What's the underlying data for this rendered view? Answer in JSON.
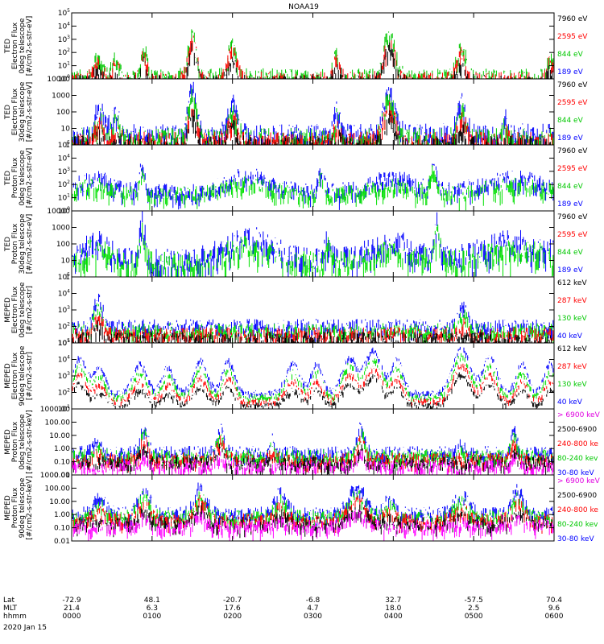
{
  "chart_data": {
    "type": "line",
    "title": "NOAA19",
    "date_label": "2020 Jan 15",
    "row_labels": [
      "Lat",
      "MLT",
      "hhmm"
    ],
    "time_ticks": [
      {
        "hhmm": "0000",
        "lat": "-72.9",
        "mlt": "21.4"
      },
      {
        "hhmm": "0100",
        "lat": "48.1",
        "mlt": "6.3"
      },
      {
        "hhmm": "0200",
        "lat": "-20.7",
        "mlt": "17.6"
      },
      {
        "hhmm": "0300",
        "lat": "-6.8",
        "mlt": "4.7"
      },
      {
        "hhmm": "0400",
        "lat": "32.7",
        "mlt": "18.0"
      },
      {
        "hhmm": "0500",
        "lat": "-57.5",
        "mlt": "2.5"
      },
      {
        "hhmm": "0600",
        "lat": "70.4",
        "mlt": "9.6"
      }
    ],
    "x_range_hours": [
      0,
      6
    ],
    "panels": [
      {
        "id": "ted-e-0",
        "ylabel": [
          "TED",
          "Electron Flux",
          "0deg telescope",
          "[#/cm2-s-str-eV]"
        ],
        "yticks": [
          "10^0",
          "10^1",
          "10^2",
          "10^3",
          "10^4",
          "10^5"
        ],
        "ylog_range": [
          0,
          5
        ],
        "legend": [
          {
            "text": "7960 eV",
            "color": "#000000"
          },
          {
            "text": "2595 eV",
            "color": "#ff0000"
          },
          {
            "text": "844 eV",
            "color": "#00c800"
          },
          {
            "text": "189 eV",
            "color": "#0000ff"
          }
        ],
        "series_colors": [
          "#00c800",
          "#ff0000",
          "#000000"
        ],
        "base_log": 0.3,
        "noise": 0.5,
        "bursts": [
          [
            0.33,
            0.08,
            1.5
          ],
          [
            0.55,
            0.06,
            1.4
          ],
          [
            0.9,
            0.05,
            2.2
          ],
          [
            1.5,
            0.07,
            3.6
          ],
          [
            2.0,
            0.08,
            2.5
          ],
          [
            3.3,
            0.06,
            1.8
          ],
          [
            3.95,
            0.1,
            3.2
          ],
          [
            4.85,
            0.08,
            2.2
          ],
          [
            5.95,
            0.05,
            1.6
          ]
        ]
      },
      {
        "id": "ted-e-30",
        "ylabel": [
          "TED",
          "Electron Flux",
          "30deg telescope",
          "[#/cm2-s-str-eV]"
        ],
        "yticks": [
          "1",
          "10",
          "100",
          "1000",
          "10000"
        ],
        "ylog_range": [
          0,
          4
        ],
        "legend": [
          {
            "text": "7960 eV",
            "color": "#000000"
          },
          {
            "text": "2595 eV",
            "color": "#ff0000"
          },
          {
            "text": "844 eV",
            "color": "#00c800"
          },
          {
            "text": "189 eV",
            "color": "#0000ff"
          }
        ],
        "series_colors": [
          "#0000ff",
          "#00c800",
          "#ff0000",
          "#000000"
        ],
        "base_log": 0.8,
        "noise": 0.5,
        "bursts": [
          [
            0.35,
            0.1,
            1.5
          ],
          [
            0.55,
            0.06,
            1.2
          ],
          [
            1.5,
            0.07,
            2.8
          ],
          [
            2.0,
            0.08,
            2.0
          ],
          [
            3.3,
            0.06,
            1.5
          ],
          [
            3.95,
            0.1,
            2.6
          ],
          [
            4.85,
            0.08,
            2.0
          ],
          [
            5.4,
            0.05,
            1.2
          ]
        ]
      },
      {
        "id": "ted-p-0",
        "ylabel": [
          "TED",
          "Proton Flux",
          "0deg telescope",
          "[#/cm2-s-str-eV]"
        ],
        "yticks": [
          "10^0",
          "10^1",
          "10^2",
          "10^3",
          "10^4",
          "10^5"
        ],
        "ylog_range": [
          0,
          5
        ],
        "legend": [
          {
            "text": "7960 eV",
            "color": "#000000"
          },
          {
            "text": "2595 eV",
            "color": "#ff0000"
          },
          {
            "text": "844 eV",
            "color": "#00c800"
          },
          {
            "text": "189 eV",
            "color": "#0000ff"
          }
        ],
        "series_colors": [
          "#0000ff",
          "#00e000"
        ],
        "base_log": 1.6,
        "noise": 0.5,
        "bursts": [
          [
            0.3,
            0.3,
            1.0
          ],
          [
            0.88,
            0.05,
            2.0
          ],
          [
            2.2,
            0.4,
            1.2
          ],
          [
            3.1,
            0.05,
            1.5
          ],
          [
            4.0,
            0.4,
            1.0
          ],
          [
            4.5,
            0.05,
            2.0
          ],
          [
            5.5,
            0.5,
            1.0
          ]
        ]
      },
      {
        "id": "ted-p-30",
        "ylabel": [
          "TED",
          "Proton Flux",
          "30deg telescope",
          "[#/cm2-s-str-eV]"
        ],
        "yticks": [
          "1",
          "10",
          "100",
          "1000",
          "10000"
        ],
        "ylog_range": [
          0,
          4
        ],
        "legend": [
          {
            "text": "7960 eV",
            "color": "#000000"
          },
          {
            "text": "2595 eV",
            "color": "#ff0000"
          },
          {
            "text": "844 eV",
            "color": "#00c800"
          },
          {
            "text": "189 eV",
            "color": "#0000ff"
          }
        ],
        "series_colors": [
          "#0000ff",
          "#00e000"
        ],
        "base_log": 1.2,
        "noise": 0.6,
        "bursts": [
          [
            0.3,
            0.2,
            1.2
          ],
          [
            0.88,
            0.05,
            2.2
          ],
          [
            2.2,
            0.4,
            1.3
          ],
          [
            3.2,
            0.05,
            1.5
          ],
          [
            4.0,
            0.4,
            1.0
          ],
          [
            4.55,
            0.05,
            2.0
          ],
          [
            5.5,
            0.5,
            1.1
          ]
        ]
      },
      {
        "id": "meped-e-0",
        "ylabel": [
          "MEPED",
          "Electron Flux",
          "0deg telescope",
          "[#/cm2-s-str]"
        ],
        "yticks": [
          "10^1",
          "10^2",
          "10^3",
          "10^4",
          "10^5"
        ],
        "ylog_range": [
          1,
          5
        ],
        "legend": [
          {
            "text": "612 keV",
            "color": "#000000"
          },
          {
            "text": "287 keV",
            "color": "#ff0000"
          },
          {
            "text": "130 keV",
            "color": "#00c800"
          },
          {
            "text": "40 keV",
            "color": "#0000ff"
          }
        ],
        "series_colors": [
          "#0000ff",
          "#00e000",
          "#ff0000",
          "#000000"
        ],
        "base_log": 2.1,
        "noise": 0.35,
        "bursts": [
          [
            0.33,
            0.08,
            1.6
          ],
          [
            4.88,
            0.08,
            1.2
          ]
        ]
      },
      {
        "id": "meped-e-90",
        "ylabel": [
          "MEPED",
          "Electron Flux",
          "90deg telescope",
          "[#/cm2-s-str]"
        ],
        "yticks": [
          "10^1",
          "10^2",
          "10^3",
          "10^4",
          "10^5"
        ],
        "ylog_range": [
          1,
          5
        ],
        "legend": [
          {
            "text": "612 keV",
            "color": "#000000"
          },
          {
            "text": "287 keV",
            "color": "#ff0000"
          },
          {
            "text": "130 keV",
            "color": "#00c800"
          },
          {
            "text": "40 keV",
            "color": "#0000ff"
          }
        ],
        "series_colors": [
          "#0000ff",
          "#00e000",
          "#ff0000",
          "#000000"
        ],
        "base_log": 2.0,
        "noise": 0.15,
        "bursts": [
          [
            0.1,
            0.12,
            2.2
          ],
          [
            0.35,
            0.1,
            1.6
          ],
          [
            0.85,
            0.12,
            1.8
          ],
          [
            1.2,
            0.1,
            1.6
          ],
          [
            1.6,
            0.12,
            2.0
          ],
          [
            1.95,
            0.1,
            2.0
          ],
          [
            2.75,
            0.12,
            1.8
          ],
          [
            3.05,
            0.1,
            1.8
          ],
          [
            3.45,
            0.12,
            2.2
          ],
          [
            3.75,
            0.15,
            2.6
          ],
          [
            4.05,
            0.1,
            2.0
          ],
          [
            4.85,
            0.15,
            2.8
          ],
          [
            5.2,
            0.12,
            2.2
          ],
          [
            5.6,
            0.1,
            1.8
          ],
          [
            5.95,
            0.1,
            1.8
          ]
        ]
      },
      {
        "id": "meped-p-0",
        "ylabel": [
          "MEPED",
          "Proton Flux",
          "0deg telescope",
          "[#/cm2-s-str-keV]"
        ],
        "yticks": [
          "0.01",
          "0.10",
          "1.00",
          "10.00",
          "100.00",
          "1000.00"
        ],
        "ylog_range": [
          -2,
          3
        ],
        "legend": [
          {
            "text": "> 6900 keV",
            "color": "#e000e0"
          },
          {
            "text": "2500-6900",
            "color": "#000000"
          },
          {
            "text": "240-800 ke",
            "color": "#ff0000"
          },
          {
            "text": "80-240 kev",
            "color": "#00c800"
          },
          {
            "text": "30-80 keV",
            "color": "#0000ff"
          }
        ],
        "series_colors": [
          "#0000ff",
          "#00e000",
          "#ff0000",
          "#000000",
          "#ff00ff"
        ],
        "base_log": -0.2,
        "noise": 0.4,
        "bursts": [
          [
            0.33,
            0.08,
            0.9
          ],
          [
            0.9,
            0.06,
            2.0
          ],
          [
            1.85,
            0.06,
            1.9
          ],
          [
            2.5,
            0.05,
            1.0
          ],
          [
            3.6,
            0.06,
            2.0
          ],
          [
            4.85,
            0.06,
            0.6
          ],
          [
            5.5,
            0.05,
            1.8
          ]
        ]
      },
      {
        "id": "meped-p-90",
        "ylabel": [
          "MEPED",
          "Proton Flux",
          "90deg telescope",
          "[#/cm2-s-str-keV]"
        ],
        "yticks": [
          "0.01",
          "0.10",
          "1.00",
          "10.00",
          "100.00",
          "1000.00"
        ],
        "ylog_range": [
          -2,
          3
        ],
        "legend": [
          {
            "text": "> 6900 keV",
            "color": "#e000e0"
          },
          {
            "text": "2500-6900",
            "color": "#000000"
          },
          {
            "text": "240-800 ke",
            "color": "#ff0000"
          },
          {
            "text": "80-240 kev",
            "color": "#00c800"
          },
          {
            "text": "30-80 keV",
            "color": "#0000ff"
          }
        ],
        "series_colors": [
          "#0000ff",
          "#00e000",
          "#ff0000",
          "#000000",
          "#ff00ff"
        ],
        "base_log": 0.2,
        "noise": 0.4,
        "bursts": [
          [
            0.35,
            0.1,
            1.2
          ],
          [
            0.9,
            0.1,
            1.8
          ],
          [
            1.6,
            0.1,
            2.0
          ],
          [
            2.6,
            0.1,
            1.6
          ],
          [
            3.55,
            0.15,
            2.0
          ],
          [
            3.95,
            0.08,
            1.2
          ],
          [
            4.85,
            0.12,
            1.4
          ],
          [
            5.55,
            0.1,
            1.8
          ]
        ]
      }
    ]
  }
}
